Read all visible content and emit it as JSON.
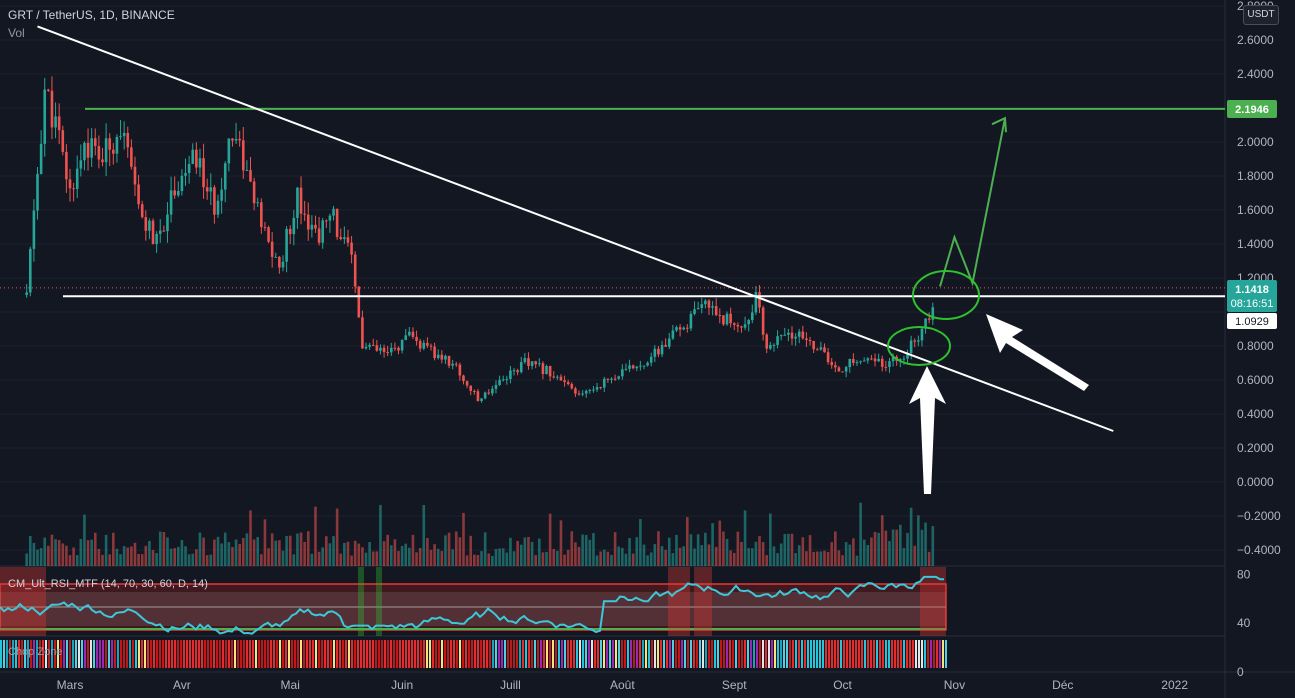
{
  "header": {
    "symbol_line": "GRT / TetherUS, 1D, BINANCE",
    "volume_label": "Vol"
  },
  "price_axis": {
    "currency": "USDT",
    "ticks": [
      "2.8000",
      "2.6000",
      "2.4000",
      "2.2000",
      "2.0000",
      "1.8000",
      "1.6000",
      "1.4000",
      "1.2000",
      "0.8000",
      "0.6000",
      "0.4000",
      "0.2000",
      "0.0000",
      "−0.2000",
      "−0.4000"
    ]
  },
  "rsi_axis": {
    "ticks": [
      "80",
      "40",
      "0"
    ]
  },
  "time_axis": {
    "labels": [
      "Mars",
      "Avr",
      "Mai",
      "Juin",
      "Juill",
      "Août",
      "Sept",
      "Oct",
      "Nov",
      "Déc",
      "2022"
    ]
  },
  "indicators": {
    "rsi_label": "CM_Ult_RSI_MTF (14, 70, 30, 60, D, 14)",
    "chop_label": "Chop Zone"
  },
  "price_badges": {
    "resistance": "2.1946",
    "last_price": "1.1418",
    "countdown": "08:16:51",
    "support": "1.0929"
  },
  "colors": {
    "background": "#131722",
    "up_candle": "#26a69a",
    "down_candle": "#ef5350",
    "rsi_line": "#3cc8d8",
    "resistance_line": "#4caf50",
    "trend_line": "#ffffff"
  },
  "chart_data": {
    "type": "candlestick",
    "symbol": "GRT/USDT",
    "timeframe": "1D",
    "exchange": "BINANCE",
    "x_range": [
      "2021-02-20",
      "2022-01-05"
    ],
    "y_range": [
      -0.4,
      2.8
    ],
    "close_path": [
      [
        "2021-02-17",
        1.1
      ],
      [
        "2021-02-22",
        2.3
      ],
      [
        "2021-02-25",
        2.1
      ],
      [
        "2021-03-01",
        1.7
      ],
      [
        "2021-03-05",
        2.0
      ],
      [
        "2021-03-10",
        1.9
      ],
      [
        "2021-03-15",
        2.1
      ],
      [
        "2021-03-20",
        1.6
      ],
      [
        "2021-03-25",
        1.4
      ],
      [
        "2021-03-30",
        1.75
      ],
      [
        "2021-04-05",
        1.9
      ],
      [
        "2021-04-10",
        1.6
      ],
      [
        "2021-04-15",
        2.1
      ],
      [
        "2021-04-18",
        1.9
      ],
      [
        "2021-04-23",
        1.5
      ],
      [
        "2021-04-28",
        1.25
      ],
      [
        "2021-05-03",
        1.7
      ],
      [
        "2021-05-08",
        1.45
      ],
      [
        "2021-05-13",
        1.55
      ],
      [
        "2021-05-18",
        1.3
      ],
      [
        "2021-05-21",
        0.8
      ],
      [
        "2021-05-28",
        0.75
      ],
      [
        "2021-06-03",
        0.85
      ],
      [
        "2021-06-10",
        0.75
      ],
      [
        "2021-06-15",
        0.7
      ],
      [
        "2021-06-22",
        0.48
      ],
      [
        "2021-06-28",
        0.6
      ],
      [
        "2021-07-05",
        0.7
      ],
      [
        "2021-07-12",
        0.65
      ],
      [
        "2021-07-20",
        0.5
      ],
      [
        "2021-07-26",
        0.58
      ],
      [
        "2021-08-02",
        0.65
      ],
      [
        "2021-08-10",
        0.75
      ],
      [
        "2021-08-18",
        0.92
      ],
      [
        "2021-08-25",
        1.05
      ],
      [
        "2021-08-30",
        0.95
      ],
      [
        "2021-09-04",
        0.92
      ],
      [
        "2021-09-07",
        1.08
      ],
      [
        "2021-09-10",
        0.8
      ],
      [
        "2021-09-17",
        0.87
      ],
      [
        "2021-09-24",
        0.8
      ],
      [
        "2021-09-29",
        0.65
      ],
      [
        "2021-10-05",
        0.72
      ],
      [
        "2021-10-12",
        0.7
      ],
      [
        "2021-10-18",
        0.75
      ],
      [
        "2021-10-22",
        0.85
      ],
      [
        "2021-10-25",
        0.98
      ],
      [
        "2021-10-27",
        1.14
      ]
    ],
    "levels": [
      {
        "name": "2.1946",
        "value": 2.1946
      },
      {
        "name": "1.0929",
        "value": 1.0929
      }
    ],
    "last_price": 1.1418,
    "trend_line": {
      "from": [
        "2021-02-20",
        2.68
      ],
      "to": [
        "2021-12-15",
        0.3
      ]
    },
    "projection_path": [
      [
        "2021-10-28",
        1.15
      ],
      [
        "2021-11-01",
        1.44
      ],
      [
        "2021-11-06",
        1.17
      ],
      [
        "2021-11-15",
        2.14
      ]
    ],
    "rsi": {
      "upper_band": 70,
      "lower_band": 30,
      "mid": 60,
      "last": 76
    }
  }
}
